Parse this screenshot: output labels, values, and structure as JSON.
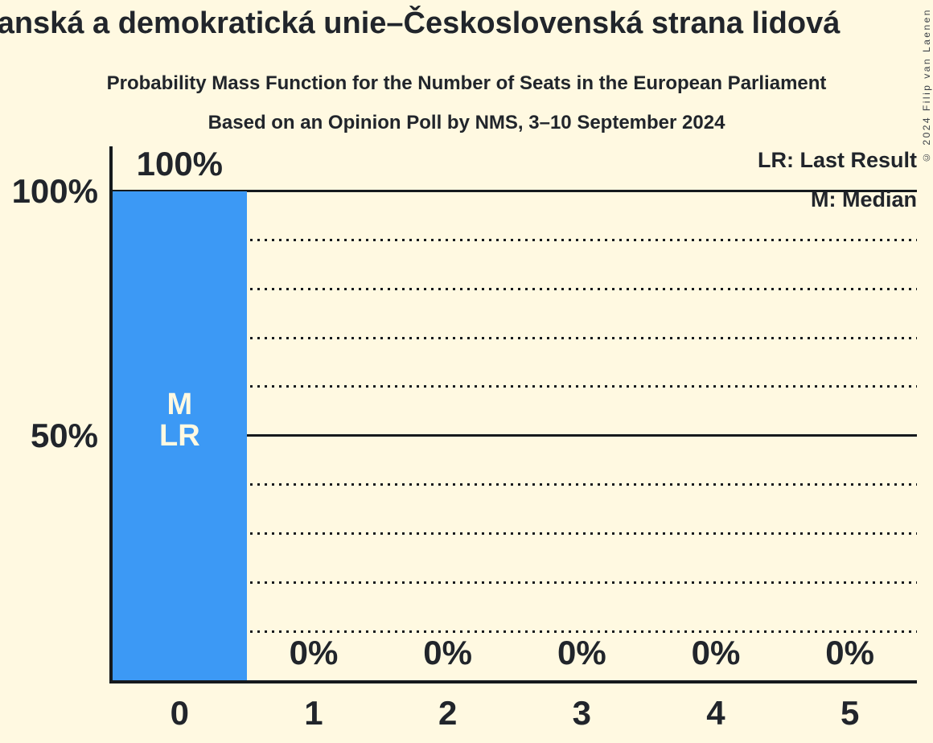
{
  "title": "Křesťanská a demokratická unie–Československá strana lidová",
  "subtitle": "Probability Mass Function for the Number of Seats in the European Parliament",
  "poll_info": "Based on an Opinion Poll by NMS, 3–10 September 2024",
  "copyright": "© 2024 Filip van Laenen",
  "legend": {
    "last_result": "LR: Last Result",
    "median": "M: Median"
  },
  "colors": {
    "background": "#fff9e1",
    "bar": "#3c99f5",
    "text": "#21252b",
    "bar_label_text": "#fff9e1",
    "line": "#161a1d"
  },
  "chart_data": {
    "type": "bar",
    "title": "Probability Mass Function for the Number of Seats in the European Parliament",
    "categories": [
      "0",
      "1",
      "2",
      "3",
      "4",
      "5"
    ],
    "values": [
      100,
      0,
      0,
      0,
      0,
      0
    ],
    "data_labels": [
      "100%",
      "0%",
      "0%",
      "0%",
      "0%",
      "0%"
    ],
    "xlabel": "",
    "ylabel": "",
    "ylim": [
      0,
      100
    ],
    "y_axis_ticks": [
      {
        "value": 100,
        "label": "100%"
      },
      {
        "value": 50,
        "label": "50%"
      }
    ],
    "gridlines": {
      "dotted": [
        10,
        20,
        30,
        40,
        60,
        70,
        80,
        90
      ],
      "solid": [
        50,
        100
      ]
    },
    "legend_position": "top-right",
    "median_category": "0",
    "last_result_category": "0",
    "bar_annotation": {
      "bar_index": 0,
      "lines": [
        "M",
        "LR"
      ]
    }
  }
}
